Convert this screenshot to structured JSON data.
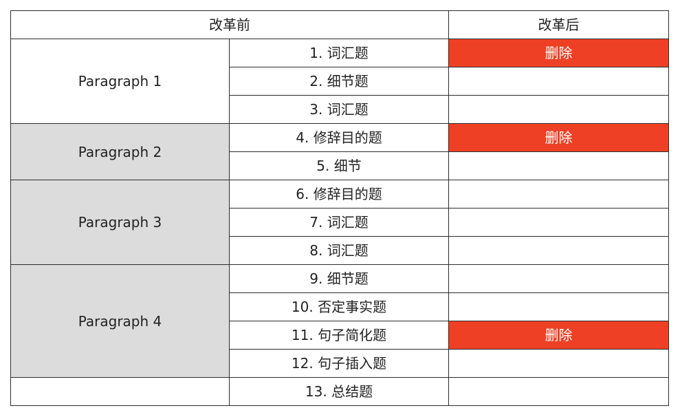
{
  "header": {
    "before": "改革前",
    "after": "改革后"
  },
  "paragraphs": {
    "p1": "Paragraph 1",
    "p2": "Paragraph 2",
    "p3": "Paragraph 3",
    "p4": "Paragraph 4",
    "p5": ""
  },
  "questions": [
    "1. 词汇题",
    "2. 细节题",
    "3. 词汇题",
    "4. 修辞目的题",
    "5. 细节",
    "6. 修辞目的题",
    "7. 词汇题",
    "8. 词汇题",
    "9. 细节题",
    "10. 否定事实题",
    "11. 句子简化题",
    "12. 句子插入题",
    "13. 总结题"
  ],
  "changes": [
    "删除",
    "",
    "",
    "删除",
    "",
    "",
    "",
    "",
    "",
    "",
    "删除",
    "",
    ""
  ],
  "colors": {
    "delete_bg": "#ee4025",
    "group_gray": "#dcdcdc",
    "border": "#2b2b2b"
  }
}
